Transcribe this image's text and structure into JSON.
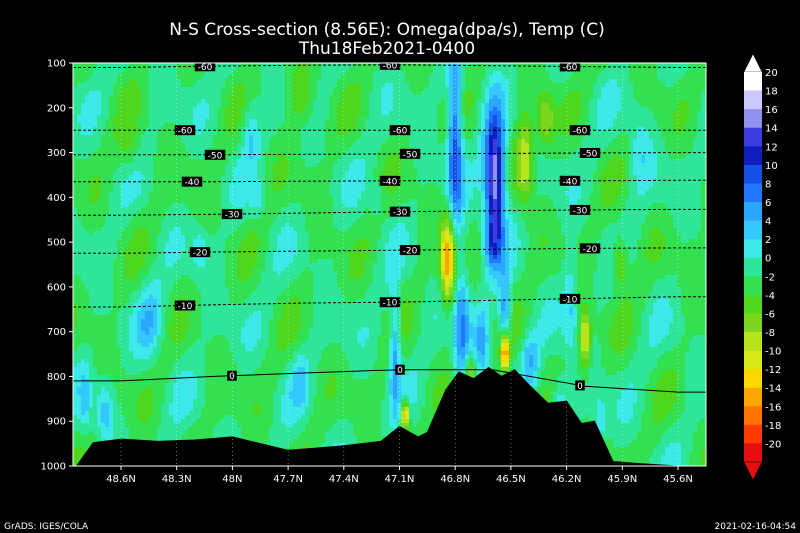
{
  "chart_data": {
    "type": "heatmap",
    "title": "N-S Cross-section (8.56E): Omega(dpa/s), Temp (C)",
    "subtitle": "Thu18Feb2021-0400",
    "x_ticks": [
      "48.6N",
      "48.3N",
      "48N",
      "47.7N",
      "47.4N",
      "47.1N",
      "46.8N",
      "46.5N",
      "46.2N",
      "45.9N",
      "45.6N"
    ],
    "y_ticks": [
      100,
      200,
      300,
      400,
      500,
      600,
      700,
      800,
      900,
      1000
    ],
    "ylim": [
      100,
      1000
    ],
    "colorbar": {
      "levels": [
        20,
        18,
        16,
        14,
        12,
        10,
        8,
        6,
        4,
        2,
        0,
        -2,
        -4,
        -6,
        -8,
        -10,
        -12,
        -14,
        -16,
        -18,
        -20
      ],
      "colors": [
        "#ffffff",
        "#c9c9ff",
        "#9191f2",
        "#3c3ce0",
        "#0f1fbd",
        "#1450e6",
        "#1f78ff",
        "#2ba6ff",
        "#34c8ff",
        "#3de8e8",
        "#2ee59a",
        "#33e052",
        "#4fd61f",
        "#7fd61f",
        "#b7e41f",
        "#dbe81a",
        "#ffd800",
        "#ffa600",
        "#ff7300",
        "#ff3a00",
        "#e60f0f"
      ]
    },
    "temperature_contours": [
      {
        "value": -60,
        "label": "-60",
        "pressure": [
          110,
          107,
          105,
          104,
          106,
          108,
          110
        ],
        "lat": [
          48.6,
          48.1,
          47.6,
          47.1,
          46.6,
          46.1,
          45.6
        ]
      },
      {
        "value": -60,
        "label": "-60",
        "pressure": [
          250,
          250,
          250,
          250,
          250,
          250,
          250
        ],
        "lat": [
          48.6,
          48.1,
          47.6,
          47.1,
          46.6,
          46.1,
          45.6
        ]
      },
      {
        "value": -50,
        "label": "-50",
        "pressure": [
          305,
          305,
          304,
          303,
          302,
          301,
          300
        ],
        "lat": [
          48.6,
          48.1,
          47.6,
          47.1,
          46.6,
          46.1,
          45.6
        ]
      },
      {
        "value": -40,
        "label": "-40",
        "pressure": [
          365,
          365,
          364,
          363,
          363,
          363,
          362
        ],
        "lat": [
          48.6,
          48.1,
          47.6,
          47.1,
          46.6,
          46.1,
          45.6
        ]
      },
      {
        "value": -30,
        "label": "-30",
        "pressure": [
          440,
          438,
          435,
          432,
          430,
          428,
          427
        ],
        "lat": [
          48.6,
          48.1,
          47.6,
          47.1,
          46.6,
          46.1,
          45.6
        ]
      },
      {
        "value": -20,
        "label": "-20",
        "pressure": [
          525,
          522,
          520,
          518,
          516,
          514,
          513
        ],
        "lat": [
          48.6,
          48.1,
          47.6,
          47.1,
          46.6,
          46.1,
          45.6
        ]
      },
      {
        "value": -10,
        "label": "-10",
        "pressure": [
          645,
          640,
          636,
          634,
          630,
          626,
          622
        ],
        "lat": [
          48.6,
          48.1,
          47.6,
          47.1,
          46.6,
          46.1,
          45.6
        ]
      },
      {
        "value": 0,
        "label": "0",
        "pressure": [
          810,
          800,
          792,
          785,
          785,
          822,
          835
        ],
        "lat": [
          48.6,
          48.1,
          47.6,
          47.1,
          46.6,
          46.1,
          45.6
        ]
      }
    ],
    "terrain_pressure": [
      {
        "lat": 48.75,
        "p": 948
      },
      {
        "lat": 48.6,
        "p": 940
      },
      {
        "lat": 48.4,
        "p": 945
      },
      {
        "lat": 48.2,
        "p": 942
      },
      {
        "lat": 48.0,
        "p": 935
      },
      {
        "lat": 47.85,
        "p": 950
      },
      {
        "lat": 47.7,
        "p": 965
      },
      {
        "lat": 47.55,
        "p": 960
      },
      {
        "lat": 47.4,
        "p": 955
      },
      {
        "lat": 47.2,
        "p": 945
      },
      {
        "lat": 47.1,
        "p": 912
      },
      {
        "lat": 47.0,
        "p": 935
      },
      {
        "lat": 46.95,
        "p": 925
      },
      {
        "lat": 46.85,
        "p": 830
      },
      {
        "lat": 46.78,
        "p": 790
      },
      {
        "lat": 46.7,
        "p": 805
      },
      {
        "lat": 46.62,
        "p": 780
      },
      {
        "lat": 46.55,
        "p": 800
      },
      {
        "lat": 46.48,
        "p": 785
      },
      {
        "lat": 46.4,
        "p": 820
      },
      {
        "lat": 46.3,
        "p": 860
      },
      {
        "lat": 46.2,
        "p": 855
      },
      {
        "lat": 46.12,
        "p": 905
      },
      {
        "lat": 46.05,
        "p": 900
      },
      {
        "lat": 45.95,
        "p": 990
      },
      {
        "lat": 45.8,
        "p": 995
      },
      {
        "lat": 45.6,
        "p": 1000
      },
      {
        "lat": 45.5,
        "p": 1005
      }
    ],
    "grid": true
  },
  "footer": {
    "left": "GrADS: IGES/COLA",
    "right": "2021-02-16-04:54"
  }
}
